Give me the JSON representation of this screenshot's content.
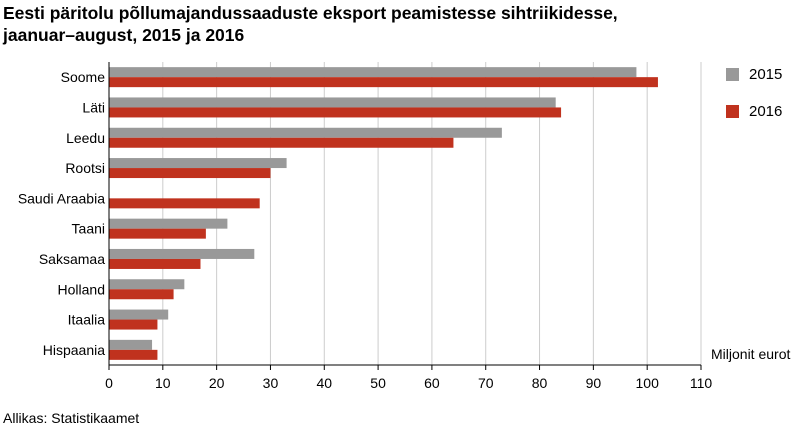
{
  "chart_data": {
    "type": "bar",
    "orientation": "horizontal",
    "title_line1": "Eesti päritolu põllumajandussaaduste eksport peamistesse sihtriikidesse,",
    "title_line2": "jaanuar–august, 2015 ja 2016",
    "categories": [
      "Soome",
      "Läti",
      "Leedu",
      "Rootsi",
      "Saudi Araabia",
      "Taani",
      "Saksamaa",
      "Holland",
      "Itaalia",
      "Hispaania"
    ],
    "series": [
      {
        "name": "2015",
        "color": "#999999",
        "values": [
          98,
          83,
          73,
          33,
          0,
          22,
          27,
          14,
          11,
          8
        ]
      },
      {
        "name": "2016",
        "color": "#c0321e",
        "values": [
          102,
          84,
          64,
          30,
          28,
          18,
          17,
          12,
          9,
          9
        ]
      }
    ],
    "xlim": [
      0,
      110
    ],
    "xticks": [
      0,
      10,
      20,
      30,
      40,
      50,
      60,
      70,
      80,
      90,
      100,
      110
    ],
    "xlabel": "Miljonit eurot",
    "grid": true,
    "legend_position": "top-right"
  },
  "source": "Allikas: Statistikaamet"
}
